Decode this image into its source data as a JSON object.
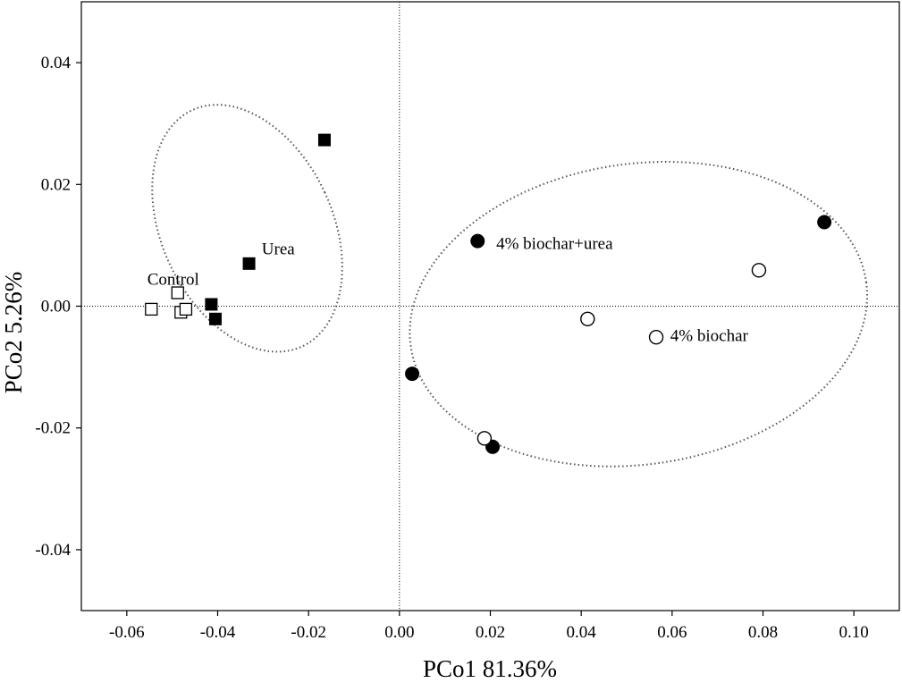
{
  "chart_data": {
    "type": "scatter",
    "title": "",
    "xlabel": "PCo1 81.36%",
    "ylabel": "PCo2 5.26%",
    "xlim": [
      -0.07,
      0.11
    ],
    "ylim": [
      -0.05,
      0.05
    ],
    "x_ticks": [
      -0.06,
      -0.04,
      -0.02,
      0.0,
      0.02,
      0.04,
      0.06,
      0.08,
      0.1
    ],
    "x_tick_labels": [
      "-0.06",
      "-0.04",
      "-0.02",
      "0.00",
      "0.02",
      "0.04",
      "0.06",
      "0.08",
      "0.10"
    ],
    "y_ticks": [
      0.04,
      0.02,
      0.0,
      -0.02,
      -0.04
    ],
    "y_tick_labels": [
      "0.04",
      "0.02",
      "0.00",
      "-0.02",
      "-0.04"
    ],
    "reference_lines": {
      "x": 0,
      "y": 0
    },
    "grid": false,
    "series": [
      {
        "name": "Control",
        "marker": "open-square",
        "points": [
          [
            -0.0546,
            -0.0005
          ],
          [
            -0.0488,
            0.0022
          ],
          [
            -0.0481,
            -0.001
          ],
          [
            -0.047,
            -0.0005
          ]
        ]
      },
      {
        "name": "Urea",
        "marker": "filled-square",
        "points": [
          [
            -0.0165,
            0.0273
          ],
          [
            -0.0331,
            0.007
          ],
          [
            -0.0414,
            0.0003
          ],
          [
            -0.0405,
            -0.0021
          ]
        ]
      },
      {
        "name": "4% biochar+urea",
        "marker": "filled-circle",
        "points": [
          [
            0.0172,
            0.0107
          ],
          [
            0.0935,
            0.0138
          ],
          [
            0.0028,
            -0.0111
          ],
          [
            0.0205,
            -0.0231
          ]
        ]
      },
      {
        "name": "4% biochar",
        "marker": "open-circle",
        "points": [
          [
            0.0791,
            0.0059
          ],
          [
            0.0414,
            -0.0021
          ],
          [
            0.0565,
            -0.0051
          ],
          [
            0.0187,
            -0.0217
          ]
        ]
      }
    ],
    "annotations": [
      {
        "text": "Control",
        "x": -0.0555,
        "y": 0.0035
      },
      {
        "text": "Urea",
        "x": -0.0303,
        "y": 0.0085
      },
      {
        "text": "4% biochar+urea",
        "x": 0.0213,
        "y": 0.0094
      },
      {
        "text": "4% biochar",
        "x": 0.0596,
        "y": -0.0057
      }
    ],
    "ellipses": [
      {
        "group": "Control + Urea",
        "center": [
          -0.0335,
          0.0128
        ],
        "rx": 0.0188,
        "ry": 0.0214,
        "rotation_deg": -25
      },
      {
        "group": "4% biochar + 4% biochar+urea",
        "center": [
          0.0526,
          -0.0013
        ],
        "rx": 0.0506,
        "ry": 0.0247,
        "rotation_deg": -8
      }
    ]
  }
}
